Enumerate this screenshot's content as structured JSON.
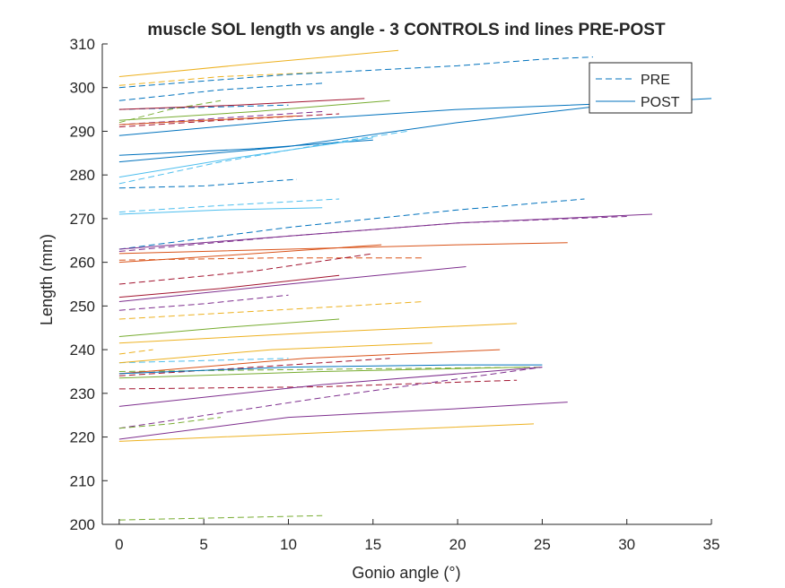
{
  "chart_data": {
    "type": "line",
    "title": "muscle SOL length vs angle - 3 CONTROLS ind lines PRE-POST",
    "xlabel": "Gonio angle (°)",
    "ylabel": "Length (mm)",
    "xlim": [
      -1,
      35
    ],
    "ylim": [
      200,
      310
    ],
    "xticks": [
      0,
      5,
      10,
      15,
      20,
      25,
      30,
      35
    ],
    "yticks": [
      200,
      210,
      220,
      230,
      240,
      250,
      260,
      270,
      280,
      290,
      300,
      310
    ],
    "grid": false,
    "legend": {
      "placement": "top-right",
      "entries": [
        {
          "label": "PRE",
          "style": "dashed",
          "color": "#0072BD"
        },
        {
          "label": "POST",
          "style": "solid",
          "color": "#0072BD"
        }
      ]
    },
    "series": [
      {
        "group": "PRE",
        "color": "#EDB120",
        "x": [
          0,
          6,
          12
        ],
        "y": [
          300.5,
          302.5,
          303.5
        ]
      },
      {
        "group": "PRE",
        "color": "#0072BD",
        "x": [
          0,
          10,
          20,
          25,
          28
        ],
        "y": [
          300,
          303,
          305,
          306.5,
          307
        ]
      },
      {
        "group": "PRE",
        "color": "#0072BD",
        "x": [
          0,
          6,
          12
        ],
        "y": [
          297,
          299.5,
          301
        ]
      },
      {
        "group": "PRE",
        "color": "#0072BD",
        "x": [
          0,
          5,
          10
        ],
        "y": [
          295,
          295.5,
          296
        ]
      },
      {
        "group": "PRE",
        "color": "#77AC30",
        "x": [
          0,
          3,
          6
        ],
        "y": [
          292,
          295,
          297
        ]
      },
      {
        "group": "PRE",
        "color": "#A2142F",
        "x": [
          0,
          6,
          13
        ],
        "y": [
          291,
          292.5,
          294
        ]
      },
      {
        "group": "PRE",
        "color": "#7E2F8E",
        "x": [
          0,
          6,
          12
        ],
        "y": [
          291.5,
          293,
          294.5
        ]
      },
      {
        "group": "PRE",
        "color": "#4DBEEE",
        "x": [
          0,
          6,
          12,
          17
        ],
        "y": [
          278,
          283,
          287,
          290
        ]
      },
      {
        "group": "PRE",
        "color": "#0072BD",
        "x": [
          0,
          5,
          10.5
        ],
        "y": [
          277,
          277.5,
          279
        ]
      },
      {
        "group": "PRE",
        "color": "#4DBEEE",
        "x": [
          0,
          6,
          13
        ],
        "y": [
          271.5,
          273,
          274.5
        ]
      },
      {
        "group": "PRE",
        "color": "#0072BD",
        "x": [
          0,
          10,
          20,
          27.5
        ],
        "y": [
          263,
          268,
          272,
          274.5
        ]
      },
      {
        "group": "PRE",
        "color": "#7E2F8E",
        "x": [
          0,
          10,
          20,
          30
        ],
        "y": [
          262.5,
          266,
          269,
          270.5
        ]
      },
      {
        "group": "PRE",
        "color": "#D95319",
        "x": [
          0,
          9,
          18
        ],
        "y": [
          260.5,
          261,
          261
        ]
      },
      {
        "group": "PRE",
        "color": "#A2142F",
        "x": [
          0,
          8,
          15
        ],
        "y": [
          255,
          258,
          262
        ]
      },
      {
        "group": "PRE",
        "color": "#EDB120",
        "x": [
          0,
          9,
          18
        ],
        "y": [
          247,
          249,
          251
        ]
      },
      {
        "group": "PRE",
        "color": "#7E2F8E",
        "x": [
          0,
          5,
          10
        ],
        "y": [
          249,
          250.5,
          252.5
        ]
      },
      {
        "group": "PRE",
        "color": "#EDB120",
        "x": [
          0,
          2
        ],
        "y": [
          239,
          240
        ]
      },
      {
        "group": "PRE",
        "color": "#4DBEEE",
        "x": [
          0,
          5,
          10
        ],
        "y": [
          237,
          237.5,
          238
        ]
      },
      {
        "group": "PRE",
        "color": "#A2142F",
        "x": [
          0,
          8,
          16
        ],
        "y": [
          234,
          236,
          238
        ]
      },
      {
        "group": "PRE",
        "color": "#A2142F",
        "x": [
          0,
          12,
          23.5
        ],
        "y": [
          231,
          231.5,
          233
        ]
      },
      {
        "group": "PRE",
        "color": "#77AC30",
        "x": [
          0,
          12,
          25
        ],
        "y": [
          235,
          235.5,
          236
        ]
      },
      {
        "group": "PRE",
        "color": "#7E2F8E",
        "x": [
          0,
          12,
          25
        ],
        "y": [
          222,
          229,
          236
        ]
      },
      {
        "group": "PRE",
        "color": "#77AC30",
        "x": [
          0,
          3,
          6
        ],
        "y": [
          222,
          223,
          224.5
        ]
      },
      {
        "group": "PRE",
        "color": "#77AC30",
        "x": [
          0,
          6,
          12
        ],
        "y": [
          201,
          201.5,
          202
        ]
      },
      {
        "group": "POST",
        "color": "#EDB120",
        "x": [
          0,
          8,
          16.5
        ],
        "y": [
          302.5,
          305.5,
          308.5
        ]
      },
      {
        "group": "POST",
        "color": "#A2142F",
        "x": [
          0,
          7,
          14.5
        ],
        "y": [
          295,
          296,
          297.5
        ]
      },
      {
        "group": "POST",
        "color": "#77AC30",
        "x": [
          0,
          8,
          16
        ],
        "y": [
          292.5,
          294.5,
          297
        ]
      },
      {
        "group": "POST",
        "color": "#D95319",
        "x": [
          0,
          5,
          10.5
        ],
        "y": [
          291.5,
          292.5,
          293.5
        ]
      },
      {
        "group": "POST",
        "color": "#0072BD",
        "x": [
          0,
          10,
          20,
          30,
          35
        ],
        "y": [
          289,
          292.5,
          295,
          296.5,
          297.5
        ]
      },
      {
        "group": "POST",
        "color": "#0072BD",
        "x": [
          0,
          10,
          20,
          30
        ],
        "y": [
          283,
          286.5,
          292,
          296.5
        ]
      },
      {
        "group": "POST",
        "color": "#0072BD",
        "x": [
          0,
          8,
          15
        ],
        "y": [
          284.5,
          286,
          288
        ]
      },
      {
        "group": "POST",
        "color": "#4DBEEE",
        "x": [
          0,
          7,
          15
        ],
        "y": [
          279.5,
          284,
          288.5
        ]
      },
      {
        "group": "POST",
        "color": "#4DBEEE",
        "x": [
          0,
          6,
          12
        ],
        "y": [
          271,
          272,
          272.5
        ]
      },
      {
        "group": "POST",
        "color": "#7E2F8E",
        "x": [
          0,
          10,
          20,
          31.5
        ],
        "y": [
          263,
          266,
          269,
          271
        ]
      },
      {
        "group": "POST",
        "color": "#D95319",
        "x": [
          0,
          10,
          20,
          26.5
        ],
        "y": [
          262,
          263,
          264,
          264.5
        ]
      },
      {
        "group": "POST",
        "color": "#D95319",
        "x": [
          0,
          8,
          15.5
        ],
        "y": [
          260,
          262,
          264
        ]
      },
      {
        "group": "POST",
        "color": "#7E2F8E",
        "x": [
          0,
          10,
          20.5
        ],
        "y": [
          251,
          255,
          259
        ]
      },
      {
        "group": "POST",
        "color": "#A2142F",
        "x": [
          0,
          6,
          13
        ],
        "y": [
          252,
          254,
          257
        ]
      },
      {
        "group": "POST",
        "color": "#77AC30",
        "x": [
          0,
          6,
          13
        ],
        "y": [
          243,
          245,
          247
        ]
      },
      {
        "group": "POST",
        "color": "#EDB120",
        "x": [
          0,
          12,
          23.5
        ],
        "y": [
          241.5,
          244,
          246
        ]
      },
      {
        "group": "POST",
        "color": "#EDB120",
        "x": [
          0,
          9,
          18.5
        ],
        "y": [
          237,
          240,
          241.5
        ]
      },
      {
        "group": "POST",
        "color": "#D95319",
        "x": [
          0,
          11,
          22.5
        ],
        "y": [
          234.5,
          238,
          240
        ]
      },
      {
        "group": "POST",
        "color": "#0072BD",
        "x": [
          0,
          10,
          20,
          25
        ],
        "y": [
          234.5,
          236,
          236.5,
          236.5
        ]
      },
      {
        "group": "POST",
        "color": "#77AC30",
        "x": [
          0,
          12,
          24
        ],
        "y": [
          233.5,
          235,
          236
        ]
      },
      {
        "group": "POST",
        "color": "#7E2F8E",
        "x": [
          0,
          12,
          25
        ],
        "y": [
          227,
          232,
          236
        ]
      },
      {
        "group": "POST",
        "color": "#7E2F8E",
        "x": [
          0,
          10,
          20,
          26.5
        ],
        "y": [
          219.5,
          224.5,
          226.5,
          228
        ]
      },
      {
        "group": "POST",
        "color": "#EDB120",
        "x": [
          0,
          12,
          24.5
        ],
        "y": [
          219,
          221,
          223
        ]
      }
    ]
  }
}
